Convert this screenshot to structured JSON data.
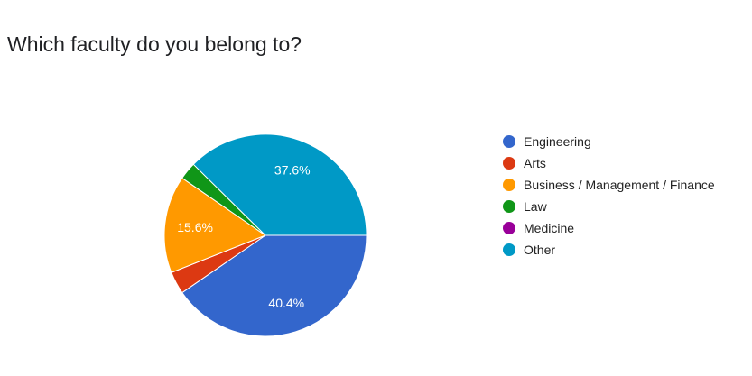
{
  "chart_data": {
    "type": "pie",
    "title": "Which faculty do you belong to?",
    "slices": [
      {
        "label": "Engineering",
        "value": 40.4,
        "color": "#3366cc",
        "display": "40.4%"
      },
      {
        "label": "Arts",
        "value": 3.6,
        "color": "#dc3912",
        "display": ""
      },
      {
        "label": "Business / Management / Finance",
        "value": 15.6,
        "color": "#ff9900",
        "display": "15.6%"
      },
      {
        "label": "Law",
        "value": 2.8,
        "color": "#109618",
        "display": ""
      },
      {
        "label": "Medicine",
        "value": 0,
        "color": "#990099",
        "display": ""
      },
      {
        "label": "Other",
        "value": 37.6,
        "color": "#0099c6",
        "display": "37.6%"
      }
    ],
    "legend_position": "right"
  }
}
